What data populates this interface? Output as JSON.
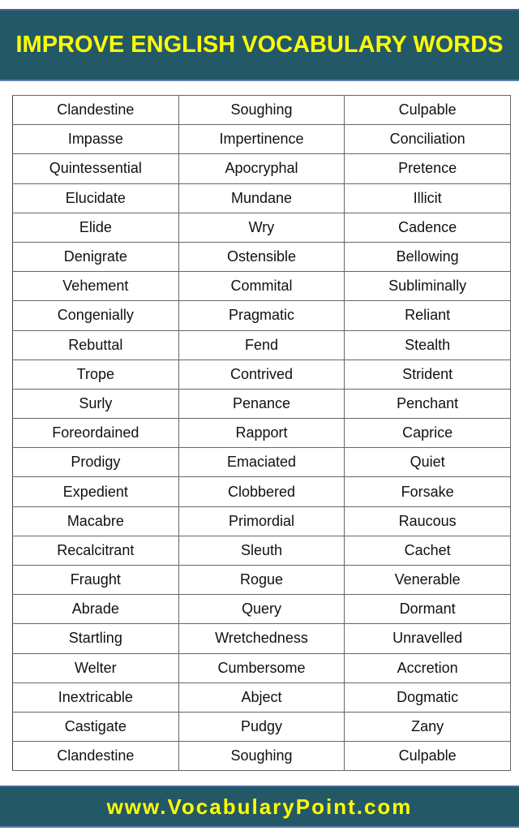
{
  "header": {
    "title": "IMPROVE ENGLISH VOCABULARY WORDS"
  },
  "footer": {
    "url": "www.VocabularyPoint.com"
  },
  "colors": {
    "banner": "#235867",
    "banner_text": "#ffff00"
  },
  "rows": [
    [
      "Clandestine",
      "Soughing",
      "Culpable"
    ],
    [
      "Impasse",
      "Impertinence",
      "Conciliation"
    ],
    [
      "Quintessential",
      "Apocryphal",
      "Pretence"
    ],
    [
      "Elucidate",
      "Mundane",
      "Illicit"
    ],
    [
      "Elide",
      "Wry",
      "Cadence"
    ],
    [
      "Denigrate",
      "Ostensible",
      "Bellowing"
    ],
    [
      "Vehement",
      "Commital",
      "Subliminally"
    ],
    [
      "Congenially",
      "Pragmatic",
      "Reliant"
    ],
    [
      "Rebuttal",
      "Fend",
      "Stealth"
    ],
    [
      "Trope",
      "Contrived",
      "Strident"
    ],
    [
      "Surly",
      "Penance",
      "Penchant"
    ],
    [
      "Foreordained",
      "Rapport",
      "Caprice"
    ],
    [
      "Prodigy",
      "Emaciated",
      "Quiet"
    ],
    [
      "Expedient",
      "Clobbered",
      "Forsake"
    ],
    [
      "Macabre",
      "Primordial",
      "Raucous"
    ],
    [
      "Recalcitrant",
      "Sleuth",
      "Cachet"
    ],
    [
      "Fraught",
      "Rogue",
      "Venerable"
    ],
    [
      "Abrade",
      "Query",
      "Dormant"
    ],
    [
      "Startling",
      "Wretchedness",
      "Unravelled"
    ],
    [
      "Welter",
      "Cumbersome",
      "Accretion"
    ],
    [
      "Inextricable",
      "Abject",
      "Dogmatic"
    ],
    [
      "Castigate",
      "Pudgy",
      "Zany"
    ],
    [
      "Clandestine",
      "Soughing",
      "Culpable"
    ]
  ]
}
